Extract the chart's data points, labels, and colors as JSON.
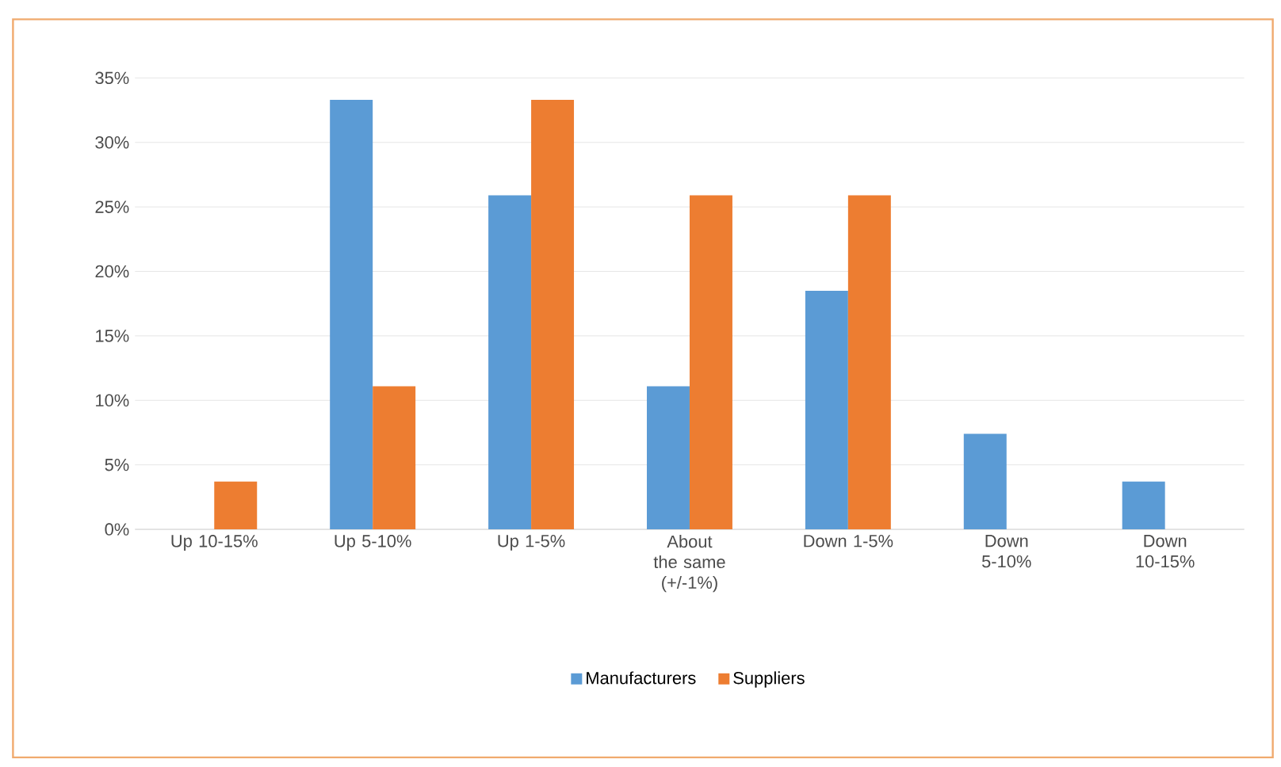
{
  "chart_data": {
    "type": "bar",
    "categories": [
      "Up 10-15%",
      "Up 5-10%",
      "Up 1-5%",
      "About the same (+/-1%)",
      "Down 1-5%",
      "Down 5-10%",
      "Down 10-15%"
    ],
    "series": [
      {
        "name": "Manufacturers",
        "color": "#5b9bd5",
        "values": [
          0,
          33.3,
          25.9,
          11.1,
          18.5,
          7.4,
          3.7
        ]
      },
      {
        "name": "Suppliers",
        "color": "#ed7d31",
        "values": [
          3.7,
          11.1,
          33.3,
          25.9,
          25.9,
          0,
          0
        ]
      }
    ],
    "ylim": [
      0,
      35
    ],
    "yticks": [
      {
        "value": 0,
        "label": "0%"
      },
      {
        "value": 5,
        "label": "5%"
      },
      {
        "value": 10,
        "label": "10%"
      },
      {
        "value": 15,
        "label": "15%"
      },
      {
        "value": 20,
        "label": "20%"
      },
      {
        "value": 25,
        "label": "25%"
      },
      {
        "value": 30,
        "label": "30%"
      },
      {
        "value": 35,
        "label": "35%"
      }
    ],
    "grid": "y",
    "legend": "bottom"
  }
}
